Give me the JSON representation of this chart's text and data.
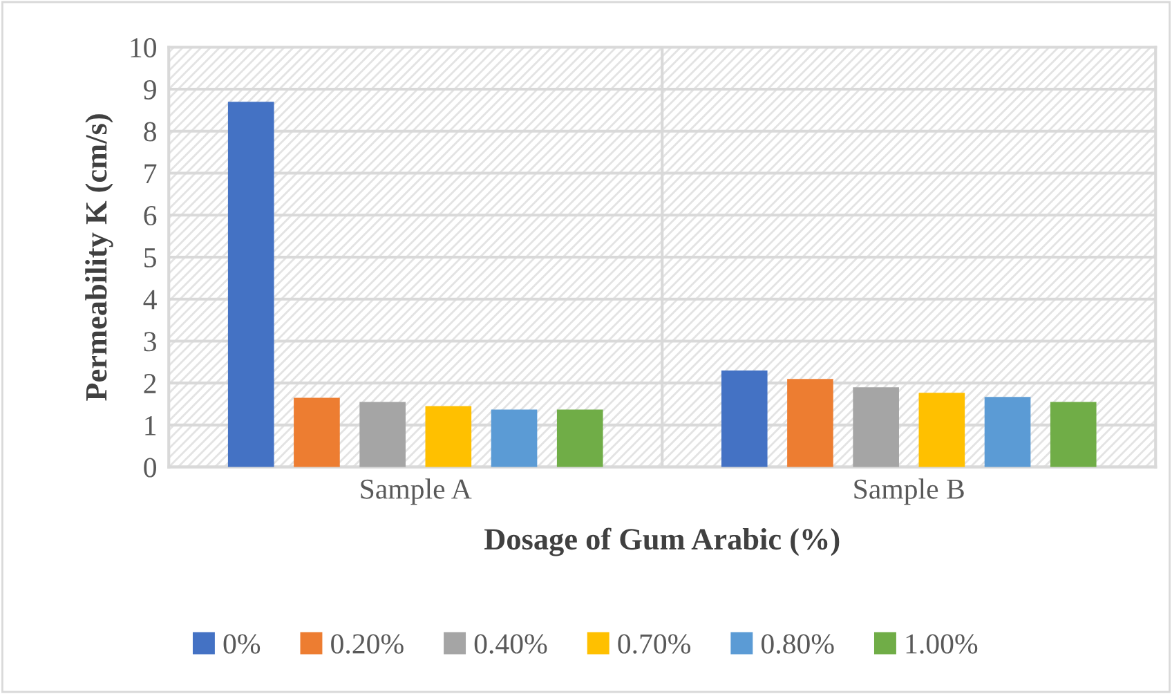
{
  "chart_data": {
    "type": "bar",
    "xlabel": "Dosage of Gum Arabic (%)",
    "ylabel": "Permeability K (cm/s)",
    "categories": [
      "Sample A",
      "Sample B"
    ],
    "series": [
      {
        "name": "0%",
        "color": "#4472c4",
        "values": [
          8.7,
          2.3
        ]
      },
      {
        "name": "0.20%",
        "color": "#ed7d31",
        "values": [
          1.65,
          2.1
        ]
      },
      {
        "name": "0.40%",
        "color": "#a5a5a5",
        "values": [
          1.55,
          1.9
        ]
      },
      {
        "name": "0.70%",
        "color": "#ffc000",
        "values": [
          1.45,
          1.77
        ]
      },
      {
        "name": "0.80%",
        "color": "#5b9bd5",
        "values": [
          1.37,
          1.67
        ]
      },
      {
        "name": "1.00%",
        "color": "#70ad47",
        "values": [
          1.37,
          1.55
        ]
      }
    ],
    "ylim": [
      0,
      10
    ],
    "yticks": [
      0,
      1,
      2,
      3,
      4,
      5,
      6,
      7,
      8,
      9,
      10
    ],
    "grid": true,
    "legend": "bottom"
  }
}
